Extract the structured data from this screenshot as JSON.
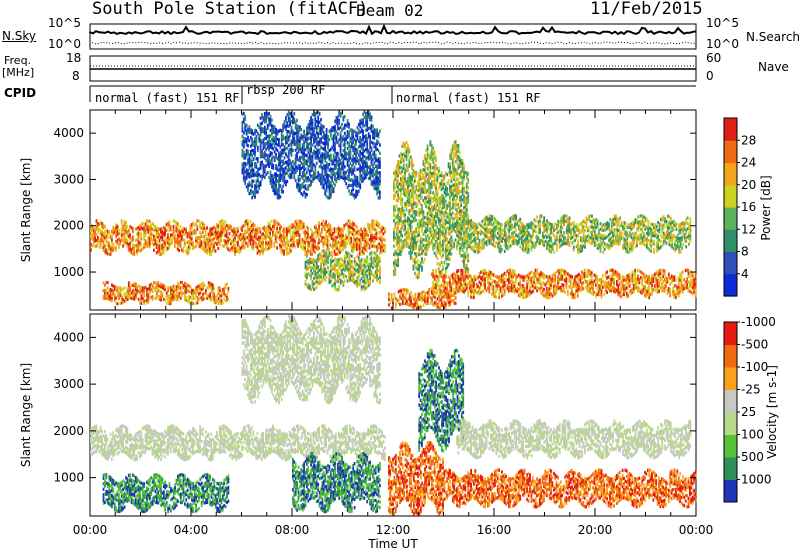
{
  "header": {
    "station": "South Pole Station (fitACF)",
    "beam": "Beam 02",
    "date": "11/Feb/2015"
  },
  "strip_labels": {
    "nsky": "N.Sky",
    "freq_line1": "Freq.",
    "freq_line2": "[MHz]",
    "cpid": "CPID",
    "nsearch": "N.Search",
    "nave": "Nave",
    "nsky_ticks": [
      "10^5",
      "10^0"
    ],
    "nsearch_ticks": [
      "10^5",
      "10^0"
    ],
    "freq_ticks": [
      "18",
      "8"
    ],
    "nave_ticks": [
      "60",
      "0"
    ]
  },
  "cpid_segments": [
    {
      "label": "normal (fast) 151 RF",
      "start_hour": 0,
      "end_hour": 6
    },
    {
      "label": "rbsp 200 RF",
      "start_hour": 6,
      "end_hour": 12
    },
    {
      "label": "normal (fast) 151 RF",
      "start_hour": 12,
      "end_hour": 24
    }
  ],
  "chart_data": [
    {
      "type": "heatmap",
      "name": "power",
      "ylabel": "Slant Range [km]",
      "xlabel": "",
      "xlim": [
        0,
        24
      ],
      "ylim": [
        180,
        4500
      ],
      "yticks": [
        1000,
        2000,
        3000,
        4000
      ],
      "colorbar": {
        "label": "Power [dB]",
        "tick_labels": [
          "4",
          "8",
          "12",
          "16",
          "20",
          "24",
          "28"
        ],
        "colors": [
          "#0a2bd6",
          "#3050b8",
          "#2e8f6a",
          "#5cb25a",
          "#cdd21e",
          "#f2a51a",
          "#ef6a10",
          "#e21f16"
        ]
      },
      "echo_bands": [
        {
          "t0": 0.0,
          "t1": 11.7,
          "r0": 1450,
          "r1": 2050,
          "level": "high"
        },
        {
          "t0": 0.5,
          "t1": 5.5,
          "r0": 350,
          "r1": 750,
          "level": "high"
        },
        {
          "t0": 6.0,
          "t1": 11.5,
          "r0": 2800,
          "r1": 4300,
          "level": "low"
        },
        {
          "t0": 8.5,
          "t1": 11.5,
          "r0": 700,
          "r1": 1400,
          "level": "medium"
        },
        {
          "t0": 11.8,
          "t1": 14.5,
          "r0": 250,
          "r1": 600,
          "level": "high"
        },
        {
          "t0": 12.0,
          "t1": 15.0,
          "r0": 1200,
          "r1": 3500,
          "level": "medium"
        },
        {
          "t0": 14.5,
          "t1": 23.8,
          "r0": 1500,
          "r1": 2150,
          "level": "medium"
        },
        {
          "t0": 13.5,
          "t1": 24.0,
          "r0": 500,
          "r1": 1000,
          "level": "high"
        }
      ]
    },
    {
      "type": "heatmap",
      "name": "velocity",
      "ylabel": "Slant Range [km]",
      "xlabel": "Time UT",
      "xlim": [
        0,
        24
      ],
      "ylim": [
        180,
        4500
      ],
      "yticks": [
        1000,
        2000,
        3000,
        4000
      ],
      "xtick_labels": [
        "00:00",
        "04:00",
        "08:00",
        "12:00",
        "16:00",
        "20:00",
        "00:00"
      ],
      "colorbar": {
        "label": "Velocity [m s-1]",
        "tick_labels": [
          "1000",
          "500",
          "100",
          "25",
          "-25",
          "-100",
          "-500",
          "-1000"
        ],
        "colors": [
          "#1f35b8",
          "#2f8f58",
          "#55c23a",
          "#b8d88a",
          "#c8c8c4",
          "#f7a21a",
          "#f06a10",
          "#e51a12"
        ]
      },
      "echo_bands": [
        {
          "t0": 0.0,
          "t1": 11.7,
          "r0": 1450,
          "r1": 2050,
          "level": "low"
        },
        {
          "t0": 0.5,
          "t1": 5.5,
          "r0": 350,
          "r1": 1000,
          "level": "positive"
        },
        {
          "t0": 6.0,
          "t1": 11.5,
          "r0": 2800,
          "r1": 4300,
          "level": "low"
        },
        {
          "t0": 8.0,
          "t1": 11.5,
          "r0": 400,
          "r1": 1400,
          "level": "positive"
        },
        {
          "t0": 11.8,
          "t1": 14.0,
          "r0": 350,
          "r1": 1600,
          "level": "negative"
        },
        {
          "t0": 13.0,
          "t1": 14.8,
          "r0": 1800,
          "r1": 3500,
          "level": "positive"
        },
        {
          "t0": 14.5,
          "t1": 23.8,
          "r0": 1500,
          "r1": 2150,
          "level": "low"
        },
        {
          "t0": 14.0,
          "t1": 24.0,
          "r0": 450,
          "r1": 1100,
          "level": "negative"
        }
      ]
    }
  ]
}
